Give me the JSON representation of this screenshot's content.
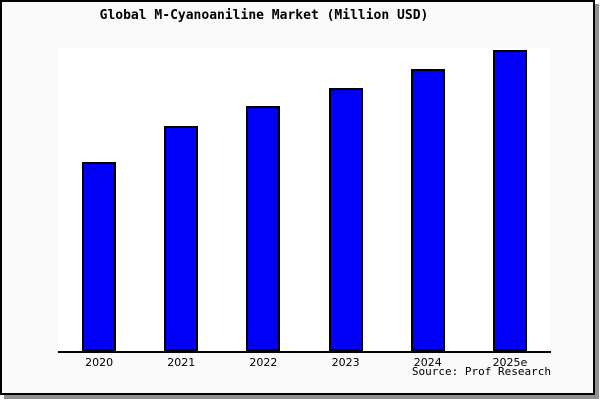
{
  "title": "Global M-Cyanoaniline Market (Million USD)",
  "source_caption": "Source: Prof Research",
  "colors": {
    "bar_fill": "#0000fa",
    "bar_border": "#000000",
    "plot_background": "#ffffff",
    "canvas_background": "#fafafa",
    "frame_border": "#000000",
    "shadow": "#8f8f8f"
  },
  "chart_data": {
    "type": "bar",
    "title": "Global M-Cyanoaniline Market (Million USD)",
    "categories": [
      "2020",
      "2021",
      "2022",
      "2023",
      "2024",
      "2025e"
    ],
    "values": [
      62.8,
      74.8,
      81.4,
      87.4,
      93.6,
      100
    ],
    "value_note": "No y-axis ticks shown; values estimated as % of tallest (2025e) bar height",
    "xlabel": "",
    "ylabel": "",
    "ylim": [
      0,
      100.7
    ],
    "grid": false,
    "legend": false,
    "bar_color": "#0000fa"
  }
}
